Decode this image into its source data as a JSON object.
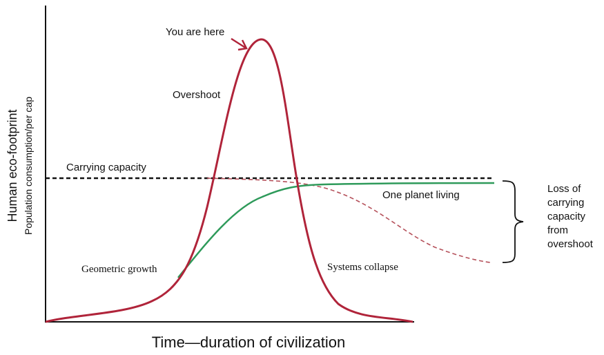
{
  "diagram": {
    "labels": {
      "you_are_here": "You are here",
      "overshoot": "Overshoot",
      "carrying_capacity": "Carrying capacity",
      "one_planet_living": "One planet living",
      "geometric_growth": "Geometric growth",
      "systems_collapse": "Systems collapse",
      "loss_note": [
        "Loss of",
        "carrying",
        "capacity",
        "from",
        "overshoot"
      ]
    },
    "y_axis": {
      "title": "Human eco-footprint",
      "subtitle": "Population consumption/per cap"
    },
    "x_axis": {
      "title": "Time—duration of civilization"
    }
  }
}
